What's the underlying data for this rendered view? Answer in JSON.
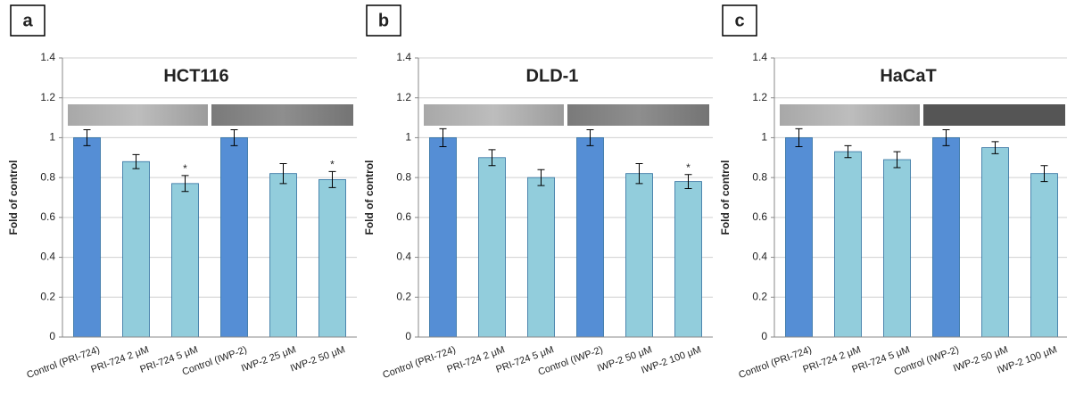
{
  "chart_data": [
    {
      "type": "bar",
      "panel": "a",
      "title": "HCT116",
      "ylabel": "Fold of control",
      "categories": [
        "Control (PRI-724)",
        "PRI-724 2 μM",
        "PRI-724 5 μM",
        "Control (IWP-2)",
        "IWP-2 25 μM",
        "IWP-2 50 μM"
      ],
      "values": [
        1,
        0.88,
        0.77,
        1,
        0.82,
        0.79
      ],
      "errors": [
        0.04,
        0.035,
        0.04,
        0.04,
        0.05,
        0.04
      ],
      "significance": [
        null,
        null,
        "*",
        null,
        null,
        "*"
      ],
      "colors": [
        "#558ed5",
        "#92cddc",
        "#92cddc",
        "#558ed5",
        "#92cddc",
        "#92cddc"
      ],
      "ylim": [
        0,
        1.4
      ],
      "yticks": [
        0,
        0.2,
        0.4,
        0.6,
        0.8,
        1,
        1.2,
        1.4
      ],
      "grid": true
    },
    {
      "type": "bar",
      "panel": "b",
      "title": "DLD-1",
      "ylabel": "Fold of control",
      "categories": [
        "Control (PRI-724)",
        "PRI-724 2 μM",
        "PRI-724 5 μM",
        "Control (IWP-2)",
        "IWP-2 50 μM",
        "IWP-2 100 μM"
      ],
      "values": [
        1,
        0.9,
        0.8,
        1,
        0.82,
        0.78
      ],
      "errors": [
        0.045,
        0.04,
        0.04,
        0.04,
        0.05,
        0.035
      ],
      "significance": [
        null,
        null,
        null,
        null,
        null,
        "*"
      ],
      "colors": [
        "#558ed5",
        "#92cddc",
        "#92cddc",
        "#558ed5",
        "#92cddc",
        "#92cddc"
      ],
      "ylim": [
        0,
        1.4
      ],
      "yticks": [
        0,
        0.2,
        0.4,
        0.6,
        0.8,
        1,
        1.2,
        1.4
      ],
      "grid": true
    },
    {
      "type": "bar",
      "panel": "c",
      "title": "HaCaT",
      "ylabel": "Fold of control",
      "categories": [
        "Control (PRI-724)",
        "PRI-724 2 μM",
        "PRI-724 5 μM",
        "Control (IWP-2)",
        "IWP-2 50 μM",
        "IWP-2 100 μM"
      ],
      "values": [
        1,
        0.93,
        0.89,
        1,
        0.95,
        0.82
      ],
      "errors": [
        0.045,
        0.03,
        0.04,
        0.04,
        0.03,
        0.04
      ],
      "significance": [
        null,
        null,
        null,
        null,
        null,
        null
      ],
      "colors": [
        "#558ed5",
        "#92cddc",
        "#92cddc",
        "#558ed5",
        "#92cddc",
        "#92cddc"
      ],
      "ylim": [
        0,
        1.4
      ],
      "yticks": [
        0,
        0.2,
        0.4,
        0.6,
        0.8,
        1,
        1.2,
        1.4
      ],
      "grid": true
    }
  ]
}
